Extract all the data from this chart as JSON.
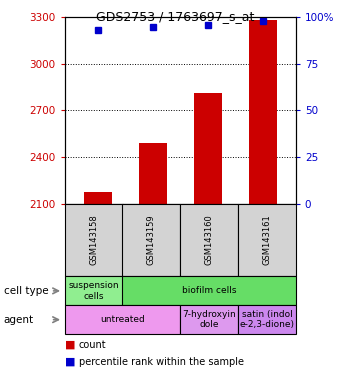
{
  "title": "GDS2753 / 1763697_s_at",
  "samples": [
    "GSM143158",
    "GSM143159",
    "GSM143160",
    "GSM143161"
  ],
  "counts": [
    2175,
    2490,
    2810,
    3280
  ],
  "percentiles": [
    93,
    95,
    96,
    98
  ],
  "ylim_left": [
    2100,
    3300
  ],
  "ylim_right": [
    0,
    100
  ],
  "yticks_left": [
    2100,
    2400,
    2700,
    3000,
    3300
  ],
  "yticks_right": [
    0,
    25,
    50,
    75,
    100
  ],
  "bar_color": "#cc0000",
  "dot_color": "#0000cc",
  "label_color_left": "#cc0000",
  "label_color_right": "#0000cc",
  "cell_configs": [
    [
      0,
      1,
      "#90ee90",
      "suspension\ncells"
    ],
    [
      1,
      3,
      "#66dd66",
      "biofilm cells"
    ]
  ],
  "agent_configs": [
    [
      0,
      2,
      "#ee99ee",
      "untreated"
    ],
    [
      2,
      1,
      "#dd99ee",
      "7-hydroxyin\ndole"
    ],
    [
      3,
      1,
      "#cc88ee",
      "satin (indol\ne-2,3-dione)"
    ]
  ],
  "sample_box_color": "#d3d3d3",
  "grid_yticks": [
    3000,
    2700,
    2400
  ],
  "bar_width": 0.5
}
